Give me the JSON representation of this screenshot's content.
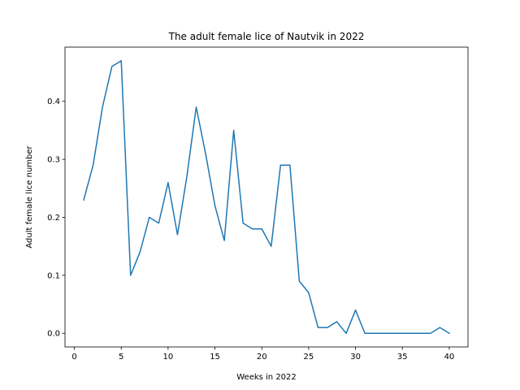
{
  "chart_data": {
    "type": "line",
    "title": "The adult female lice of Nautvik in 2022",
    "xlabel": "Weeks in 2022",
    "ylabel": "Adult female lice number",
    "xlim": [
      -1,
      42
    ],
    "ylim": [
      -0.0235,
      0.4935
    ],
    "xticks": [
      0,
      5,
      10,
      15,
      20,
      25,
      30,
      35,
      40
    ],
    "yticks": [
      0.0,
      0.1,
      0.2,
      0.3,
      0.4
    ],
    "ytick_labels": [
      "0.0",
      "0.1",
      "0.2",
      "0.3",
      "0.4"
    ],
    "grid": false,
    "series": [
      {
        "color": "#1f77b4",
        "x": [
          1,
          2,
          3,
          4,
          5,
          6,
          7,
          8,
          9,
          10,
          11,
          12,
          13,
          14,
          15,
          16,
          17,
          18,
          19,
          20,
          21,
          22,
          23,
          24,
          25,
          26,
          27,
          28,
          29,
          30,
          31,
          32,
          33,
          34,
          35,
          36,
          37,
          38,
          39,
          40
        ],
        "y": [
          0.23,
          0.29,
          0.39,
          0.46,
          0.47,
          0.1,
          0.14,
          0.2,
          0.19,
          0.26,
          0.17,
          0.27,
          0.39,
          0.31,
          0.22,
          0.16,
          0.35,
          0.19,
          0.18,
          0.18,
          0.15,
          0.29,
          0.29,
          0.09,
          0.07,
          0.01,
          0.01,
          0.02,
          0.0,
          0.04,
          0.0,
          0.0,
          0.0,
          0.0,
          0.0,
          0.0,
          0.0,
          0.0,
          0.01,
          0.0
        ]
      }
    ]
  }
}
